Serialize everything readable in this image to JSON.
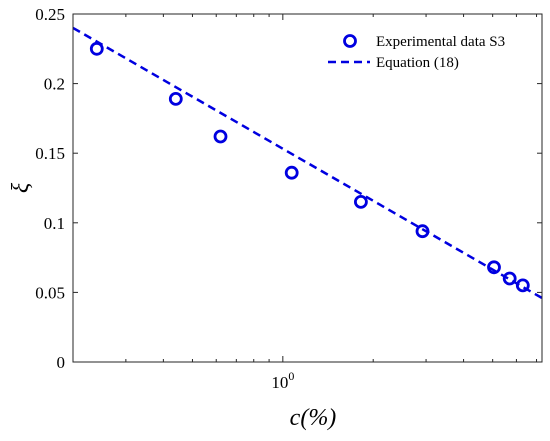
{
  "chart_data": {
    "type": "scatter",
    "xlabel": "c(%)",
    "ylabel": "ξ",
    "xscale": "log",
    "xlim": [
      0.2,
      7.3
    ],
    "ylim": [
      0,
      0.25
    ],
    "x_ticks": [
      {
        "value": 1,
        "base": "10",
        "exp": "0"
      }
    ],
    "y_ticks": [
      {
        "value": 0,
        "label": "0"
      },
      {
        "value": 0.05,
        "label": "0.05"
      },
      {
        "value": 0.1,
        "label": "0.1"
      },
      {
        "value": 0.15,
        "label": "0.15"
      },
      {
        "value": 0.2,
        "label": "0.2"
      },
      {
        "value": 0.25,
        "label": "0.25"
      }
    ],
    "grid": false,
    "legend_position": "top-right",
    "color": "#0000e0",
    "series": [
      {
        "name": "Experimental data S3",
        "marker": "open-circle",
        "x": [
          0.24,
          0.44,
          0.62,
          1.07,
          1.82,
          2.92,
          5.05,
          5.7,
          6.3
        ],
        "y": [
          0.225,
          0.189,
          0.162,
          0.136,
          0.115,
          0.094,
          0.068,
          0.06,
          0.055
        ]
      },
      {
        "name": "Equation (18)",
        "line": "dashed",
        "x": [
          0.2,
          7.3
        ],
        "y": [
          0.24,
          0.046
        ]
      }
    ]
  }
}
